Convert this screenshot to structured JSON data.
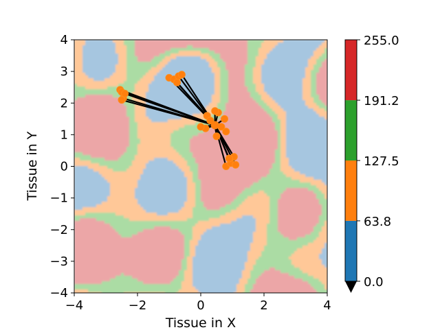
{
  "chart_data": {
    "type": "heatmap",
    "title": "",
    "xlabel": "Tissue in X",
    "ylabel": "Tissue in Y",
    "xlim": [
      -4,
      4
    ],
    "ylim": [
      -4,
      4
    ],
    "xticks": [
      "−4",
      "−2",
      "0",
      "2",
      "4"
    ],
    "yticks": [
      "−4",
      "−3",
      "−2",
      "−1",
      "0",
      "1",
      "2",
      "3",
      "4"
    ],
    "xtick_values": [
      -4,
      -2,
      0,
      2,
      4
    ],
    "ytick_values": [
      -4,
      -3,
      -2,
      -1,
      0,
      1,
      2,
      3,
      4
    ],
    "grid": false,
    "field_levels": [
      "#a6c6e0",
      "#ffc898",
      "#abdca4",
      "#eca6a7"
    ],
    "colorbar": {
      "ticks": [
        "0.0",
        "63.8",
        "127.5",
        "191.2",
        "255.0"
      ],
      "tick_values": [
        0.0,
        63.8,
        127.5,
        191.2,
        255.0
      ],
      "colors": [
        "#1f77b4",
        "#ff7f0e",
        "#2ca02c",
        "#d62728"
      ],
      "extend": "min",
      "extend_color": "#000000"
    },
    "trajectory": {
      "line_color": "#000000",
      "marker_color": "#ff7f0e",
      "hub": [
        0.45,
        1.3
      ],
      "clusters": [
        {
          "name": "upper-left",
          "points": [
            [
              -2.55,
              2.42
            ],
            [
              -2.5,
              2.35
            ],
            [
              -2.45,
              2.15
            ],
            [
              -2.5,
              2.1
            ],
            [
              -2.4,
              2.3
            ]
          ]
        },
        {
          "name": "upper",
          "points": [
            [
              -1.0,
              2.8
            ],
            [
              -0.85,
              2.75
            ],
            [
              -0.7,
              2.85
            ],
            [
              -0.6,
              2.9
            ],
            [
              -0.75,
              2.65
            ]
          ]
        },
        {
          "name": "lower",
          "points": [
            [
              0.8,
              0.0
            ],
            [
              0.95,
              0.1
            ],
            [
              1.1,
              0.05
            ],
            [
              1.05,
              0.3
            ],
            [
              0.9,
              0.25
            ]
          ]
        },
        {
          "name": "center",
          "points": [
            [
              0.2,
              1.6
            ],
            [
              0.55,
              1.7
            ],
            [
              0.75,
              1.5
            ],
            [
              0.8,
              1.1
            ],
            [
              0.5,
              0.95
            ],
            [
              0.15,
              1.2
            ],
            [
              0.3,
              1.45
            ],
            [
              0.65,
              1.25
            ],
            [
              0.0,
              1.25
            ],
            [
              0.45,
              1.75
            ]
          ]
        }
      ]
    }
  }
}
